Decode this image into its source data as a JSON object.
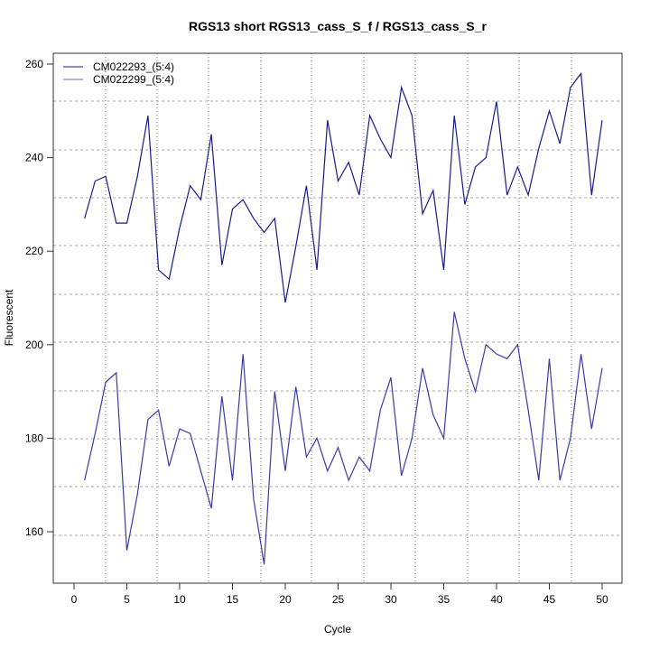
{
  "chart_data": {
    "type": "line",
    "title": "RGS13 short RGS13_cass_S_f / RGS13_cass_S_r",
    "xlabel": "Cycle",
    "ylabel": "Fluorescent",
    "xlim": [
      0,
      50
    ],
    "ylim": [
      160,
      260
    ],
    "xticks": [
      "0",
      "5",
      "10",
      "15",
      "20",
      "25",
      "30",
      "35",
      "40",
      "45",
      "50"
    ],
    "yticks": [
      "160",
      "180",
      "200",
      "220",
      "240",
      "260"
    ],
    "grid": true,
    "legend_position": "top-left",
    "x": [
      1,
      2,
      3,
      4,
      5,
      6,
      7,
      8,
      9,
      10,
      11,
      12,
      13,
      14,
      15,
      16,
      17,
      18,
      19,
      20,
      21,
      22,
      23,
      24,
      25,
      26,
      27,
      28,
      29,
      30,
      31,
      32,
      33,
      34,
      35,
      36,
      37,
      38,
      39,
      40,
      41,
      42,
      43,
      44,
      45,
      46,
      47,
      48,
      49,
      50
    ],
    "series": [
      {
        "name": "CM022293_(5:4)",
        "color": "#1a1a8c",
        "values": [
          227,
          235,
          236,
          226,
          226,
          236,
          249,
          216,
          214,
          225,
          234,
          231,
          245,
          217,
          229,
          231,
          227,
          224,
          227,
          209,
          221,
          234,
          216,
          248,
          235,
          239,
          232,
          249,
          244,
          240,
          255,
          249,
          228,
          233,
          216,
          249,
          230,
          238,
          240,
          252,
          232,
          238,
          232,
          242,
          250,
          243,
          255,
          258,
          232,
          248
        ]
      },
      {
        "name": "CM022299_(5:4)",
        "color": "#3a3aa8",
        "values": [
          171,
          181,
          192,
          194,
          156,
          168,
          184,
          186,
          174,
          182,
          181,
          173,
          165,
          189,
          171,
          198,
          167,
          153,
          190,
          173,
          191,
          176,
          180,
          173,
          178,
          171,
          176,
          173,
          186,
          193,
          172,
          180,
          195,
          185,
          180,
          207,
          197,
          190,
          200,
          198,
          197,
          200,
          186,
          171,
          197,
          171,
          180,
          198,
          182,
          195
        ]
      }
    ]
  }
}
